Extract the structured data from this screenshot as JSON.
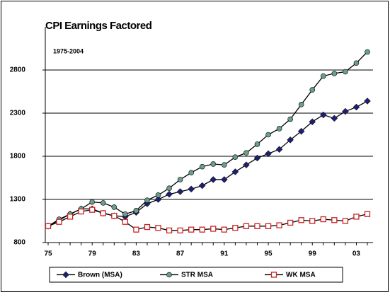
{
  "chart_data": {
    "type": "line",
    "title": "CPI Earnings Factored",
    "subtitle": "1975-2004",
    "categories": [
      "75",
      null,
      null,
      null,
      "79",
      null,
      null,
      null,
      "83",
      null,
      null,
      null,
      "87",
      null,
      null,
      null,
      "91",
      null,
      null,
      null,
      "95",
      null,
      null,
      null,
      "99",
      null,
      null,
      null,
      "03",
      null
    ],
    "series": [
      {
        "name": "Brown (MSA)",
        "color": "#1f1f6e",
        "marker": "diamond",
        "values": [
          990,
          1060,
          1130,
          1190,
          1190,
          1140,
          1110,
          1100,
          1150,
          1250,
          1300,
          1360,
          1390,
          1420,
          1460,
          1530,
          1530,
          1620,
          1700,
          1780,
          1830,
          1880,
          1990,
          2090,
          2200,
          2280,
          2240,
          2320,
          2370,
          2440
        ]
      },
      {
        "name": "STR MSA",
        "color": "#6a9f8a",
        "marker": "circle",
        "values": [
          990,
          1070,
          1130,
          1190,
          1270,
          1260,
          1210,
          1130,
          1170,
          1290,
          1350,
          1430,
          1530,
          1610,
          1680,
          1710,
          1700,
          1790,
          1840,
          1940,
          2050,
          2120,
          2230,
          2400,
          2570,
          2730,
          2760,
          2780,
          2880,
          3010
        ]
      },
      {
        "name": "WK MSA",
        "color": "#cc2222",
        "marker": "square",
        "values": [
          990,
          1040,
          1100,
          1160,
          1180,
          1140,
          1110,
          1040,
          950,
          980,
          970,
          940,
          940,
          950,
          950,
          960,
          950,
          970,
          990,
          990,
          990,
          1000,
          1030,
          1060,
          1050,
          1070,
          1060,
          1050,
          1100,
          1130
        ]
      }
    ],
    "ylim": [
      800,
      3300
    ],
    "yticks": [
      800,
      1300,
      1800,
      2300,
      2800
    ],
    "grid": true,
    "legend": "bottom"
  }
}
